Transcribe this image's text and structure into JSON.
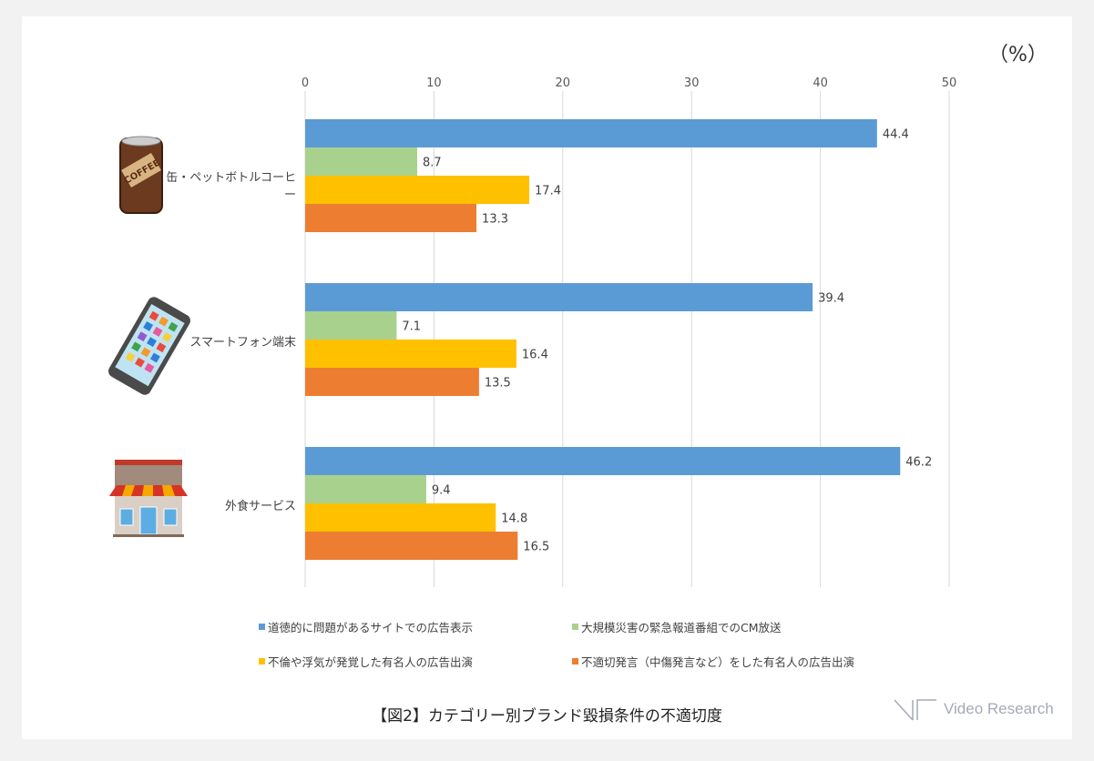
{
  "chart_data": {
    "type": "bar",
    "orientation": "horizontal",
    "title": "【図2】カテゴリー別ブランド毀損条件の不適切度",
    "unit_label": "（%）",
    "xlim": [
      0,
      50
    ],
    "ticks": [
      0,
      10,
      20,
      30,
      40,
      50
    ],
    "grid": true,
    "legend_position": "bottom",
    "categories": [
      "缶・ペットボトルコーヒー",
      "スマートフォン端末",
      "外食サービス"
    ],
    "series": [
      {
        "name": "道徳的に問題があるサイトでの広告表示",
        "color": "#5b9bd5",
        "values": [
          44.4,
          39.4,
          46.2
        ]
      },
      {
        "name": "大規模災害の緊急報道番組でのCM放送",
        "color": "#a9d18e",
        "values": [
          8.7,
          7.1,
          9.4
        ]
      },
      {
        "name": "不倫や浮気が発覚した有名人の広告出演",
        "color": "#ffc000",
        "values": [
          17.4,
          16.4,
          14.8
        ]
      },
      {
        "name": "不適切発言（中傷発言など）をした有名人の広告出演",
        "color": "#ed7d31",
        "values": [
          13.3,
          13.5,
          16.5
        ]
      }
    ]
  },
  "brand": {
    "logo_text": "Video Research"
  }
}
